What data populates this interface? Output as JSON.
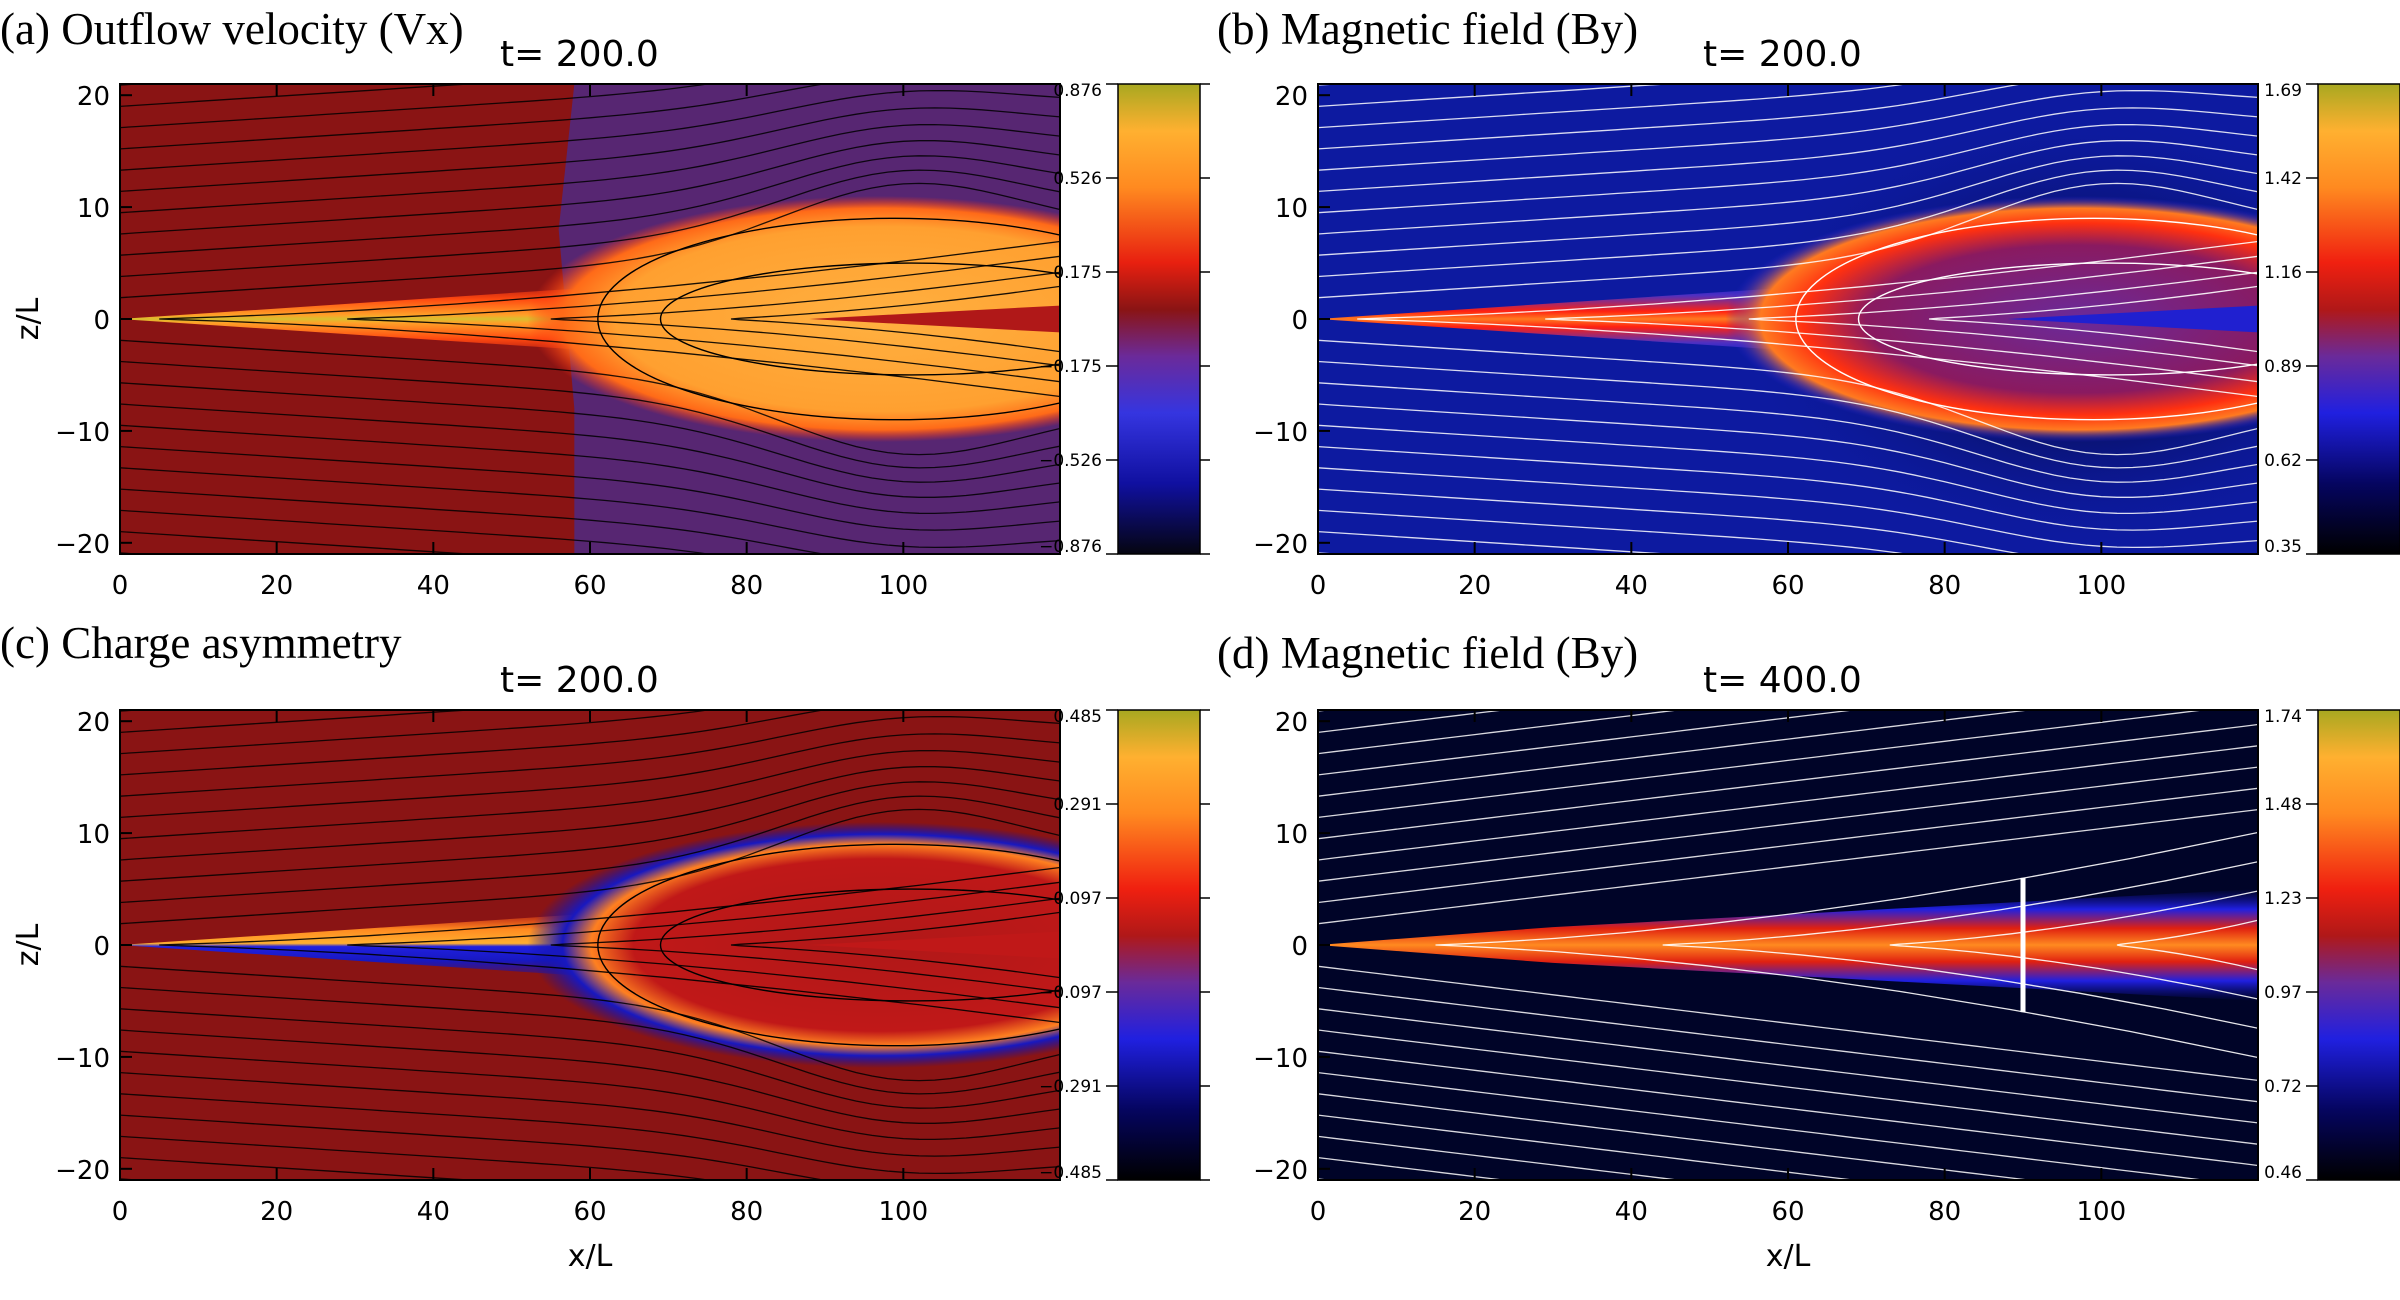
{
  "chart_data": [
    {
      "type": "heatmap",
      "panel_title": "(a) Outflow velocity (Vx)",
      "time_label": "t= 200.0",
      "xlabel": "",
      "ylabel": "z/L",
      "xlim": [
        0,
        120
      ],
      "ylim": [
        -21,
        21
      ],
      "x_ticks": [
        "0",
        "20",
        "40",
        "60",
        "80",
        "100"
      ],
      "y_ticks": [
        "20",
        "10",
        "0",
        "−10",
        "−20"
      ],
      "colorbar_ticks": [
        "0.876",
        "0.526",
        "0.175",
        "−0.175",
        "−0.526",
        "−0.876"
      ],
      "colormap": "red-temperature",
      "background_color": "#8a1414",
      "contour_color": "#000000",
      "feature": "bubble"
    },
    {
      "type": "heatmap",
      "panel_title": "(b) Magnetic field (By)",
      "time_label": "t= 200.0",
      "xlabel": "",
      "ylabel": "",
      "xlim": [
        0,
        120
      ],
      "ylim": [
        -21,
        21
      ],
      "x_ticks": [
        "0",
        "20",
        "40",
        "60",
        "80",
        "100"
      ],
      "y_ticks": [
        "20",
        "10",
        "0",
        "−10",
        "−20"
      ],
      "colorbar_ticks": [
        "1.69",
        "1.42",
        "1.16",
        "0.89",
        "0.62",
        "0.35"
      ],
      "colormap": "blue-red-temperature",
      "background_color": "#0d1aa0",
      "contour_color": "#ffffff",
      "feature": "bubble"
    },
    {
      "type": "heatmap",
      "panel_title": "(c) Charge asymmetry",
      "time_label": "t= 200.0",
      "xlabel": "x/L",
      "ylabel": "z/L",
      "xlim": [
        0,
        120
      ],
      "ylim": [
        -21,
        21
      ],
      "x_ticks": [
        "0",
        "20",
        "40",
        "60",
        "80",
        "100"
      ],
      "y_ticks": [
        "20",
        "10",
        "0",
        "−10",
        "−20"
      ],
      "colorbar_ticks": [
        "0.485",
        "0.291",
        "0.097",
        "−0.097",
        "−0.291",
        "−0.485"
      ],
      "colormap": "blue-red-temperature",
      "background_color": "#8a1414",
      "contour_color": "#000000",
      "feature": "asymmetric-bubble"
    },
    {
      "type": "heatmap",
      "panel_title": "(d) Magnetic field (By)",
      "time_label": "t= 400.0",
      "xlabel": "x/L",
      "ylabel": "",
      "xlim": [
        0,
        120
      ],
      "ylim": [
        -21,
        21
      ],
      "x_ticks": [
        "0",
        "20",
        "40",
        "60",
        "80",
        "100"
      ],
      "y_ticks": [
        "20",
        "10",
        "0",
        "−10",
        "−20"
      ],
      "colorbar_ticks": [
        "1.74",
        "1.48",
        "1.23",
        "0.97",
        "0.72",
        "0.46"
      ],
      "colormap": "blue-red-temperature",
      "background_color": "#000428",
      "contour_color": "#ffffff",
      "feature": "jet",
      "marker_line_x": 90,
      "marker_line_z": [
        -6,
        6
      ]
    }
  ]
}
